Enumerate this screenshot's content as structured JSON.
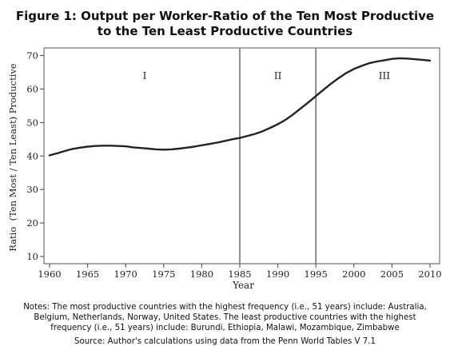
{
  "title_line1": "Figure 1: Output per Worker-Ratio of the Ten Most Productive",
  "title_line2": "to the Ten Least Productive Countries",
  "notes_line1": "Notes: The most productive countries with the highest frequency (i.e., 51 years) include: Australia,",
  "notes_line2": "Belgium, Netherlands, Norway, United States. The least productive countries with the highest",
  "notes_line3": "frequency (i.e., 51 years) include: Burundi, Ethiopia, Malawi, Mozambique, Zimbabwe",
  "source": "Source: Author's calculations using data from the Penn World Tables V 7.1",
  "chart_data": {
    "type": "line",
    "xlabel": "Year",
    "ylabel": "Ratio  (Ten Most / Ten Least) Productive",
    "xlim": [
      1960,
      2010
    ],
    "ylim": [
      10,
      70
    ],
    "x_ticks": [
      "1960",
      "1965",
      "1970",
      "1975",
      "1980",
      "1985",
      "1990",
      "1995",
      "2000",
      "2005",
      "2010"
    ],
    "y_ticks": [
      "10",
      "20",
      "30",
      "40",
      "50",
      "60",
      "70"
    ],
    "grid": false,
    "series": [
      {
        "x": [
          1960,
          1961,
          1962,
          1963,
          1964,
          1965,
          1966,
          1967,
          1968,
          1969,
          1970,
          1971,
          1972,
          1973,
          1974,
          1975,
          1976,
          1977,
          1978,
          1979,
          1980,
          1981,
          1982,
          1983,
          1984,
          1985,
          1986,
          1987,
          1988,
          1989,
          1990,
          1991,
          1992,
          1993,
          1994,
          1995,
          1996,
          1997,
          1998,
          1999,
          2000,
          2001,
          2002,
          2003,
          2004,
          2005,
          2006,
          2007,
          2008,
          2009,
          2010
        ],
        "values": [
          40.2,
          40.8,
          41.5,
          42.1,
          42.5,
          42.8,
          43.0,
          43.1,
          43.1,
          43.0,
          42.9,
          42.6,
          42.4,
          42.2,
          42.0,
          41.9,
          42.0,
          42.2,
          42.5,
          42.8,
          43.2,
          43.6,
          44.0,
          44.5,
          45.0,
          45.4,
          46.0,
          46.6,
          47.4,
          48.4,
          49.5,
          50.8,
          52.4,
          54.2,
          56.0,
          57.9,
          59.8,
          61.6,
          63.3,
          64.8,
          66.0,
          66.9,
          67.7,
          68.2,
          68.6,
          69.0,
          69.2,
          69.1,
          68.9,
          68.7,
          68.5
        ]
      }
    ],
    "vertical_lines": [
      1985,
      1995
    ],
    "annotations": [
      {
        "text": "I",
        "x": 1972.5,
        "y": 63
      },
      {
        "text": "II",
        "x": 1990,
        "y": 63
      },
      {
        "text": "III",
        "x": 2004,
        "y": 63
      }
    ]
  }
}
